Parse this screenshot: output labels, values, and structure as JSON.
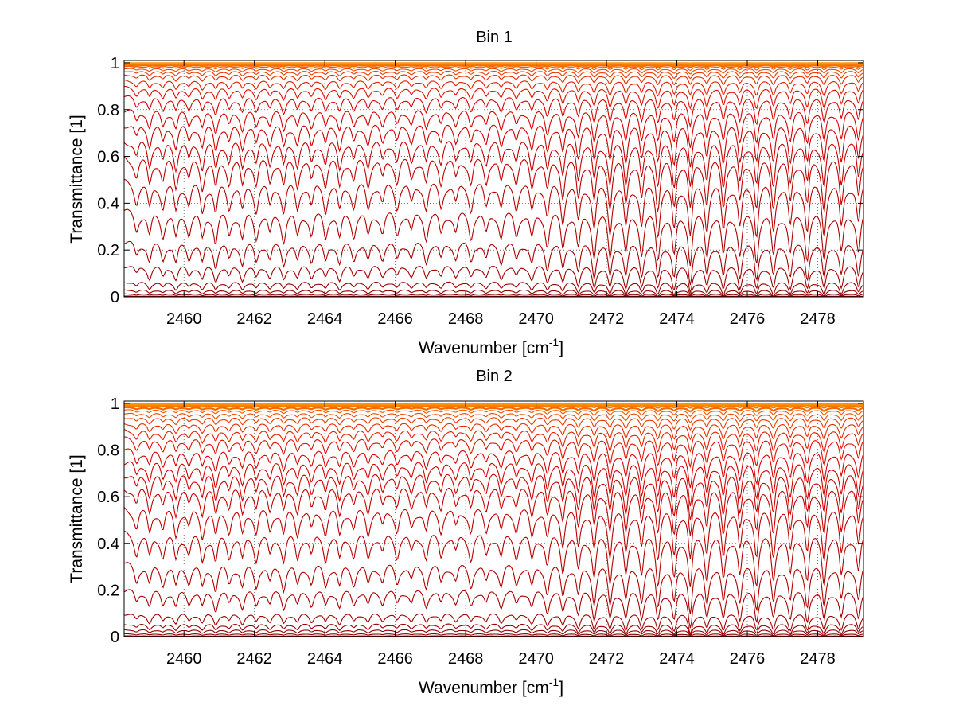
{
  "chart_data": [
    {
      "type": "line",
      "title": "Bin 1",
      "xlabel": {
        "main": "Wavenumber [cm",
        "sup": "-1",
        "end": "]"
      },
      "ylabel": "Transmittance [1]",
      "xlim": [
        2458.3,
        2479.3
      ],
      "ylim": [
        0,
        1.01
      ],
      "xticks": [
        2460,
        2462,
        2464,
        2466,
        2468,
        2470,
        2472,
        2474,
        2476,
        2478
      ],
      "xtick_labels": [
        "2460",
        "2462",
        "2464",
        "2466",
        "2468",
        "2470",
        "2472",
        "2474",
        "2476",
        "2478"
      ],
      "yticks": [
        0,
        0.2,
        0.4,
        0.6,
        0.8,
        1
      ],
      "ytick_labels": [
        "0",
        "0.2",
        "0.4",
        "0.6",
        "0.8",
        "1"
      ],
      "grid": "dotted",
      "series_colormap": "dark red to orange (hot)",
      "baselines": [
        0.003,
        0.012,
        0.03,
        0.065,
        0.135,
        0.235,
        0.365,
        0.49,
        0.595,
        0.67,
        0.74,
        0.8,
        0.855,
        0.895,
        0.925,
        0.95,
        0.965,
        0.976,
        0.984,
        0.99,
        0.994,
        0.997,
        0.999
      ],
      "line_centers": [
        2458.65,
        2459.02,
        2459.4,
        2459.77,
        2460.14,
        2460.52,
        2460.9,
        2461.28,
        2461.66,
        2462.05,
        2462.44,
        2462.83,
        2463.22,
        2463.62,
        2464.02,
        2464.42,
        2464.82,
        2465.23,
        2465.64,
        2466.05,
        2466.46,
        2466.88,
        2467.3,
        2467.72,
        2468.15,
        2468.58,
        2469.01,
        2469.44,
        2469.88,
        2470.32,
        2470.76,
        2471.2,
        2471.65,
        2472.1,
        2472.55,
        2473.0,
        2473.46,
        2473.92,
        2474.38,
        2474.85,
        2475.32,
        2475.79,
        2476.26,
        2476.74,
        2477.22,
        2477.7,
        2478.18,
        2478.67,
        2479.16
      ],
      "line_strengths": [
        0.35,
        0.5,
        0.45,
        0.55,
        0.4,
        0.55,
        0.6,
        0.45,
        0.55,
        0.5,
        0.45,
        0.55,
        0.5,
        0.45,
        0.5,
        0.55,
        0.45,
        0.5,
        0.4,
        0.45,
        0.4,
        0.5,
        0.45,
        0.4,
        0.5,
        0.45,
        0.5,
        0.45,
        0.55,
        0.65,
        0.7,
        0.75,
        0.85,
        0.9,
        0.85,
        0.8,
        0.95,
        0.9,
        1.0,
        0.85,
        0.9,
        0.85,
        0.95,
        0.9,
        0.85,
        0.9,
        0.95,
        0.85,
        0.8
      ]
    },
    {
      "type": "line",
      "title": "Bin 2",
      "xlabel": {
        "main": "Wavenumber [cm",
        "sup": "-1",
        "end": "]"
      },
      "ylabel": "Transmittance [1]",
      "xlim": [
        2458.3,
        2479.3
      ],
      "ylim": [
        0,
        1.01
      ],
      "xticks": [
        2460,
        2462,
        2464,
        2466,
        2468,
        2470,
        2472,
        2474,
        2476,
        2478
      ],
      "xtick_labels": [
        "2460",
        "2462",
        "2464",
        "2466",
        "2468",
        "2470",
        "2472",
        "2474",
        "2476",
        "2478"
      ],
      "yticks": [
        0,
        0.2,
        0.4,
        0.6,
        0.8,
        1
      ],
      "ytick_labels": [
        "0",
        "0.2",
        "0.4",
        "0.6",
        "0.8",
        "1"
      ],
      "grid": "dotted",
      "series_colormap": "dark red to orange (hot)",
      "baselines": [
        0.003,
        0.012,
        0.03,
        0.055,
        0.1,
        0.2,
        0.31,
        0.44,
        0.55,
        0.64,
        0.7,
        0.75,
        0.8,
        0.85,
        0.885,
        0.915,
        0.94,
        0.958,
        0.972,
        0.982,
        0.99,
        0.995,
        0.998
      ],
      "line_centers": [
        2458.65,
        2459.02,
        2459.4,
        2459.77,
        2460.14,
        2460.52,
        2460.9,
        2461.28,
        2461.66,
        2462.05,
        2462.44,
        2462.83,
        2463.22,
        2463.62,
        2464.02,
        2464.42,
        2464.82,
        2465.23,
        2465.64,
        2466.05,
        2466.46,
        2466.88,
        2467.3,
        2467.72,
        2468.15,
        2468.58,
        2469.01,
        2469.44,
        2469.88,
        2470.32,
        2470.76,
        2471.2,
        2471.65,
        2472.1,
        2472.55,
        2473.0,
        2473.46,
        2473.92,
        2474.38,
        2474.85,
        2475.32,
        2475.79,
        2476.26,
        2476.74,
        2477.22,
        2477.7,
        2478.18,
        2478.67,
        2479.16
      ],
      "line_strengths": [
        0.35,
        0.45,
        0.4,
        0.5,
        0.35,
        0.5,
        0.55,
        0.4,
        0.5,
        0.45,
        0.4,
        0.5,
        0.45,
        0.4,
        0.45,
        0.5,
        0.4,
        0.45,
        0.35,
        0.4,
        0.35,
        0.45,
        0.4,
        0.35,
        0.45,
        0.4,
        0.45,
        0.4,
        0.5,
        0.6,
        0.65,
        0.7,
        0.8,
        0.85,
        0.8,
        0.75,
        0.9,
        0.85,
        1.0,
        0.8,
        0.85,
        0.8,
        0.9,
        0.85,
        0.8,
        0.85,
        0.9,
        0.8,
        0.75
      ]
    }
  ]
}
